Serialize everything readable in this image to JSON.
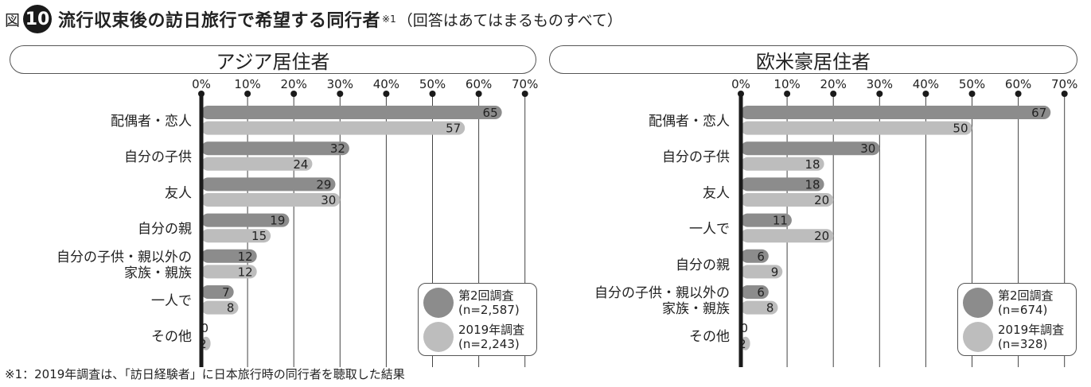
{
  "header": {
    "fig_label": "図",
    "fig_number": "10",
    "title": "流行収束後の訪日旅行で希望する同行者",
    "note_mark": "※1",
    "subtitle": "（回答はあてはまるものすべて）"
  },
  "footnote": "※1：2019年調査は、「訪日経験者」に日本旅行時の同行者を聴取した結果",
  "colors": {
    "current": "#8c8c8c",
    "previous": "#bdbdbd",
    "axis": "#1a1a1a",
    "grid": "#444444"
  },
  "chart_data": [
    {
      "type": "bar",
      "title": "アジア居住者",
      "xlim": [
        0,
        70
      ],
      "ticks": [
        "0%",
        "10%",
        "20%",
        "30%",
        "40%",
        "50%",
        "60%",
        "70%"
      ],
      "categories": [
        "配偶者・恋人",
        "自分の子供",
        "友人",
        "自分の親",
        "自分の子供・親以外の\n家族・親族",
        "一人で",
        "その他"
      ],
      "series": [
        {
          "name": "第2回調査\n(n=2,587)",
          "values": [
            65,
            32,
            29,
            19,
            12,
            7,
            0
          ]
        },
        {
          "name": "2019年調査\n(n=2,243)",
          "values": [
            57,
            24,
            30,
            15,
            12,
            8,
            2
          ]
        }
      ],
      "legend": "bottom-right"
    },
    {
      "type": "bar",
      "title": "欧米豪居住者",
      "xlim": [
        0,
        70
      ],
      "ticks": [
        "0%",
        "10%",
        "20%",
        "30%",
        "40%",
        "50%",
        "60%",
        "70%"
      ],
      "categories": [
        "配偶者・恋人",
        "自分の子供",
        "友人",
        "一人で",
        "自分の親",
        "自分の子供・親以外の\n家族・親族",
        "その他"
      ],
      "series": [
        {
          "name": "第2回調査\n(n=674)",
          "values": [
            67,
            30,
            18,
            11,
            6,
            6,
            0
          ]
        },
        {
          "name": "2019年調査\n(n=328)",
          "values": [
            50,
            18,
            20,
            20,
            9,
            8,
            2
          ]
        }
      ],
      "legend": "bottom-right"
    }
  ]
}
